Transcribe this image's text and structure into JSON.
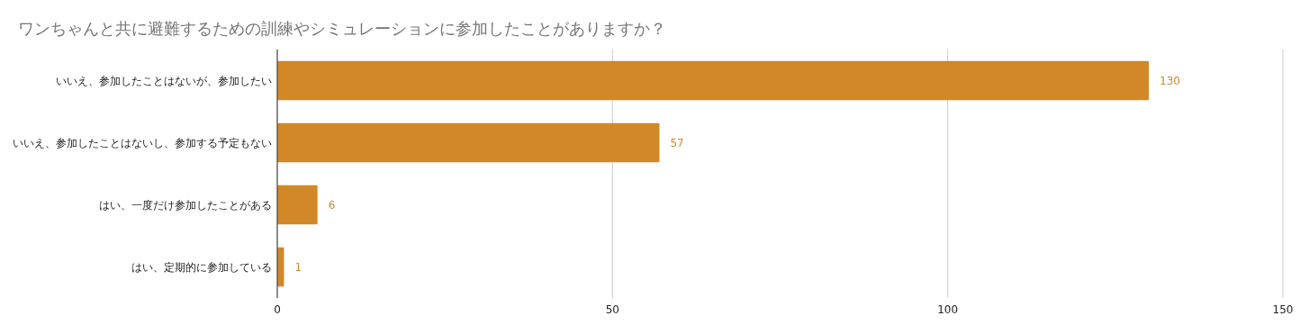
{
  "chart_data": {
    "type": "bar",
    "orientation": "horizontal",
    "title": "ワンちゃんと共に避難するための訓練やシミュレーションに参加したことがありますか？",
    "categories": [
      "いいえ、参加したことはないが、参加したい",
      "いいえ、参加したことはないし、参加する予定もない",
      "はい、一度だけ参加したことがある",
      "はい、定期的に参加している"
    ],
    "values": [
      130,
      57,
      6,
      1
    ],
    "color": "#d38827",
    "data_labels": true,
    "xlim": [
      0,
      150
    ],
    "xticks": [
      0,
      50,
      100,
      150
    ],
    "grid": "x"
  }
}
